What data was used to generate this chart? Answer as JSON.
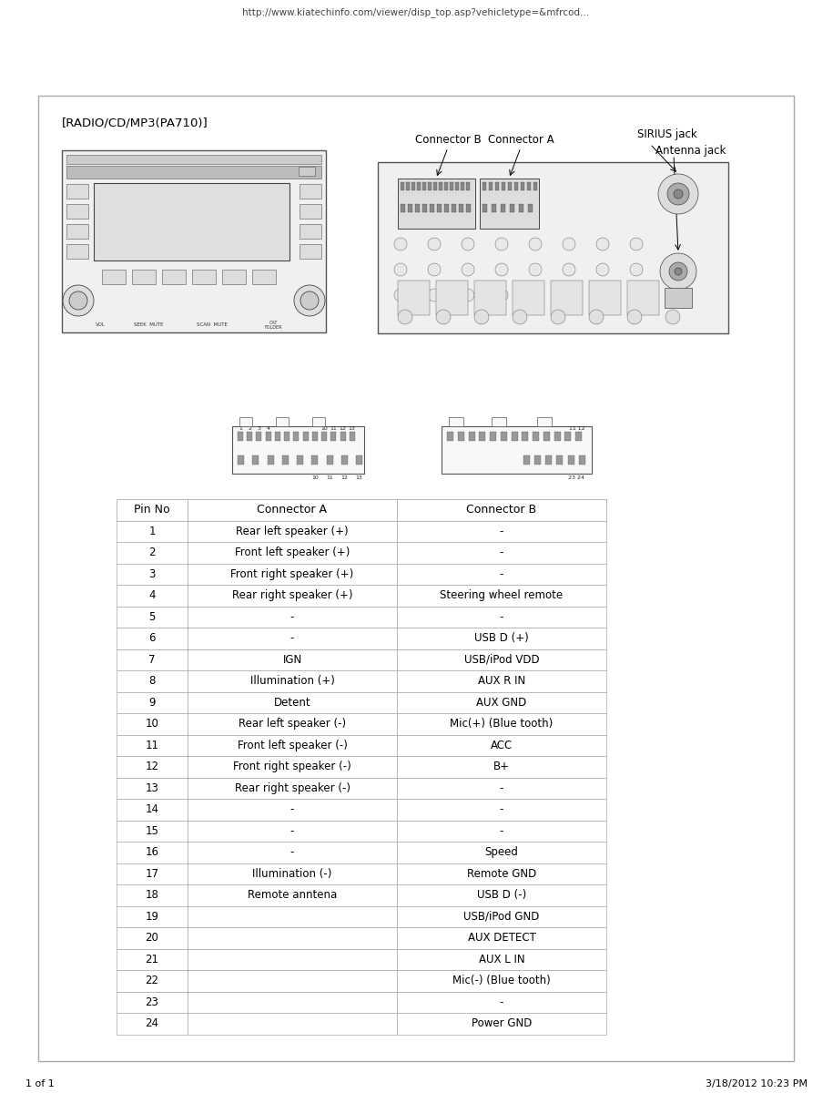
{
  "url_text": "http://www.kiatechinfo.com/viewer/disp_top.asp?vehicletype=&mfrcod...",
  "page_text": "1 of 1",
  "date_text": "3/18/2012 10:23 PM",
  "title": "[RADIO/CD/MP3(PA710)]",
  "label_connector_b": "Connector B",
  "label_connector_a": "Connector A",
  "label_sirius": "SIRIUS jack",
  "label_antenna": "Antenna jack",
  "table_headers": [
    "Pin No",
    "Connector A",
    "Connector B"
  ],
  "table_data": [
    [
      "1",
      "Rear left speaker (+)",
      "-"
    ],
    [
      "2",
      "Front left speaker (+)",
      "-"
    ],
    [
      "3",
      "Front right speaker (+)",
      "-"
    ],
    [
      "4",
      "Rear right speaker (+)",
      "Steering wheel remote"
    ],
    [
      "5",
      "-",
      "-"
    ],
    [
      "6",
      "-",
      "USB D (+)"
    ],
    [
      "7",
      "IGN",
      "USB/iPod VDD"
    ],
    [
      "8",
      "Illumination (+)",
      "AUX R IN"
    ],
    [
      "9",
      "Detent",
      "AUX GND"
    ],
    [
      "10",
      "Rear left speaker (-)",
      "Mic(+) (Blue tooth)"
    ],
    [
      "11",
      "Front left speaker (-)",
      "ACC"
    ],
    [
      "12",
      "Front right speaker (-)",
      "B+"
    ],
    [
      "13",
      "Rear right speaker (-)",
      "-"
    ],
    [
      "14",
      "-",
      "-"
    ],
    [
      "15",
      "-",
      "-"
    ],
    [
      "16",
      "-",
      "Speed"
    ],
    [
      "17",
      "Illumination (-)",
      "Remote GND"
    ],
    [
      "18",
      "Remote anntena",
      "USB D (-)"
    ],
    [
      "19",
      "",
      "USB/iPod GND"
    ],
    [
      "20",
      "",
      "AUX DETECT"
    ],
    [
      "21",
      "",
      "AUX L IN"
    ],
    [
      "22",
      "",
      "Mic(-) (Blue tooth)"
    ],
    [
      "23",
      "",
      "-"
    ],
    [
      "24",
      "",
      "Power GND"
    ]
  ],
  "bg_color": "#ffffff",
  "border_color": "#aaaaaa",
  "table_line_color": "#aaaaaa",
  "text_color": "#000000",
  "url_color": "#444444",
  "sketch_edge": "#555555",
  "sketch_face": "#f0f0f0",
  "sketch_dark": "#cccccc",
  "sketch_med": "#dddddd"
}
